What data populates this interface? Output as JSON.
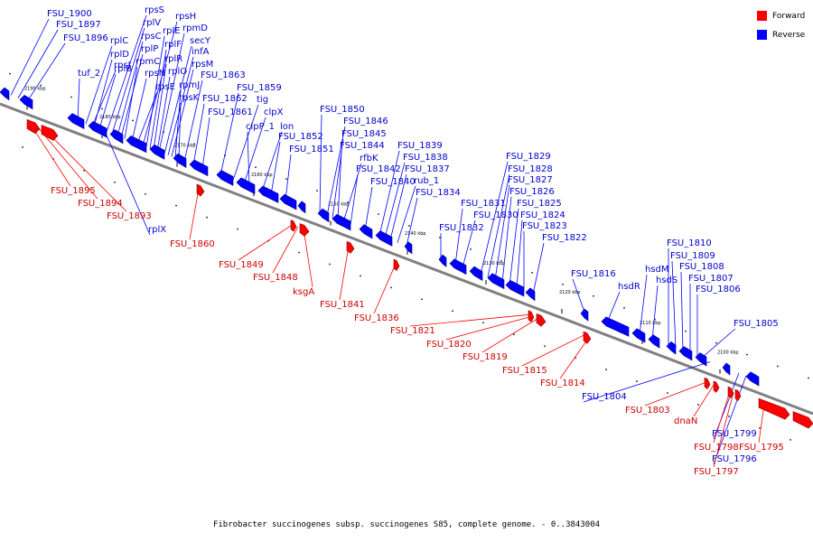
{
  "caption": "Fibrobacter succinogenes subsp. succinogenes S85, complete genome. - 0..3843004",
  "legend": {
    "forward": {
      "label": "Forward",
      "color": "#ff0000"
    },
    "reverse": {
      "label": "Reverse",
      "color": "#0000ff"
    }
  },
  "ticks": [
    "2190 kbp",
    "2180 kbp",
    "2170 kbp",
    "2160 kbp",
    "2150 kbp",
    "2140 kbp",
    "2130 kbp",
    "2120 kbp",
    "2110 kbp",
    "2100 kbp"
  ],
  "reverse_genes": [
    "FSU_1900",
    "FSU_1897",
    "FSU_1896",
    "tuf_2",
    "rpsJ",
    "rplC",
    "rplD",
    "rplB",
    "rpsS",
    "rplV",
    "rpsC",
    "rplP",
    "rpmC",
    "rpsN",
    "rpsE",
    "rpsH",
    "rplE",
    "rplF",
    "rplR",
    "rplO",
    "rpmD",
    "secY",
    "infA",
    "rpsM",
    "rpmJ",
    "rpsK",
    "FSU_1863",
    "FSU_1862",
    "FSU_1861",
    "FSU_1859",
    "tig",
    "clpX",
    "clpP_1",
    "lon",
    "FSU_1852",
    "FSU_1851",
    "FSU_1850",
    "FSU_1846",
    "FSU_1845",
    "FSU_1844",
    "rfbK",
    "FSU_1842",
    "FSU_1840",
    "FSU_1839",
    "FSU_1838",
    "FSU_1837",
    "rub_1",
    "FSU_1834",
    "FSU_1832",
    "FSU_1831",
    "FSU_1830",
    "FSU_1829",
    "FSU_1828",
    "FSU_1827",
    "FSU_1826",
    "FSU_1825",
    "FSU_1824",
    "FSU_1823",
    "FSU_1822",
    "FSU_1816",
    "hsdR",
    "hsdM",
    "hsdS",
    "FSU_1810",
    "FSU_1809",
    "FSU_1808",
    "FSU_1807",
    "FSU_1806",
    "FSU_1805",
    "rplX",
    "FSU_1804",
    "FSU_1799",
    "FSU_1796"
  ],
  "forward_genes": [
    "FSU_1895",
    "FSU_1894",
    "FSU_1893",
    "FSU_1860",
    "FSU_1849",
    "FSU_1848",
    "ksgA",
    "FSU_1841",
    "FSU_1836",
    "FSU_1821",
    "FSU_1820",
    "FSU_1819",
    "FSU_1815",
    "FSU_1814",
    "FSU_1803",
    "dnaN",
    "FSU_1798",
    "FSU_1797",
    "FSU_1795"
  ]
}
